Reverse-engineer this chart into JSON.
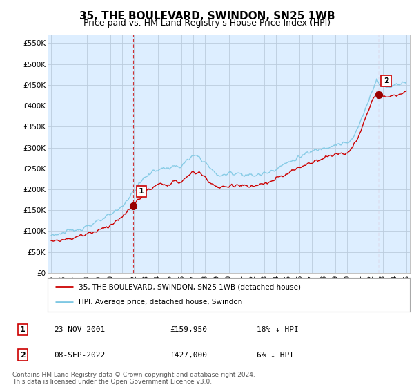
{
  "title": "35, THE BOULEVARD, SWINDON, SN25 1WB",
  "subtitle": "Price paid vs. HM Land Registry's House Price Index (HPI)",
  "ylim": [
    0,
    570000
  ],
  "yticks": [
    0,
    50000,
    100000,
    150000,
    200000,
    250000,
    300000,
    350000,
    400000,
    450000,
    500000,
    550000
  ],
  "ytick_labels": [
    "£0",
    "£50K",
    "£100K",
    "£150K",
    "£200K",
    "£250K",
    "£300K",
    "£350K",
    "£400K",
    "£450K",
    "£500K",
    "£550K"
  ],
  "sale1_date": 2001.9,
  "sale1_price": 159950,
  "sale1_label": "1",
  "sale2_date": 2022.67,
  "sale2_price": 427000,
  "sale2_label": "2",
  "hpi_color": "#7ec8e3",
  "price_color": "#cc0000",
  "vline_color": "#cc0000",
  "background_color": "#ffffff",
  "plot_bg_color": "#ddeeff",
  "grid_color": "#bbccdd",
  "legend_entry1": "35, THE BOULEVARD, SWINDON, SN25 1WB (detached house)",
  "legend_entry2": "HPI: Average price, detached house, Swindon",
  "table_row1": [
    "1",
    "23-NOV-2001",
    "£159,950",
    "18% ↓ HPI"
  ],
  "table_row2": [
    "2",
    "08-SEP-2022",
    "£427,000",
    "6% ↓ HPI"
  ],
  "footnote": "Contains HM Land Registry data © Crown copyright and database right 2024.\nThis data is licensed under the Open Government Licence v3.0.",
  "title_fontsize": 11,
  "subtitle_fontsize": 9,
  "tick_fontsize": 7.5
}
